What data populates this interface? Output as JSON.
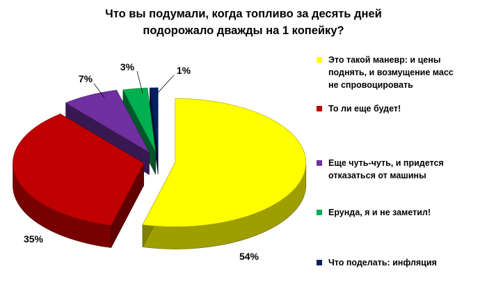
{
  "chart_data": {
    "type": "pie",
    "title_lines": [
      "Что вы подумали, когда топливо за десять дней",
      "подорожало дважды на 1 копейку?"
    ],
    "slices": [
      {
        "label_lines": [
          "Это такой маневр: и цены",
          "поднять, и возмущение масс",
          "не спровоцировать"
        ],
        "value": 54,
        "label": "54%",
        "color": "#FFFF00"
      },
      {
        "label_lines": [
          "То ли еще будет!"
        ],
        "value": 35,
        "label": "35%",
        "color": "#C00000"
      },
      {
        "label_lines": [
          "Еще чуть-чуть, и придется",
          "отказаться от машины"
        ],
        "value": 7,
        "label": "7%",
        "color": "#7030A0"
      },
      {
        "label_lines": [
          "Ерунда, я и не заметил!"
        ],
        "value": 3,
        "label": "3%",
        "color": "#00B050"
      },
      {
        "label_lines": [
          "Что поделать: инфляция"
        ],
        "value": 1,
        "label": "1%",
        "color": "#002060"
      }
    ],
    "legend_position": "right",
    "style": "3d-exploded"
  }
}
